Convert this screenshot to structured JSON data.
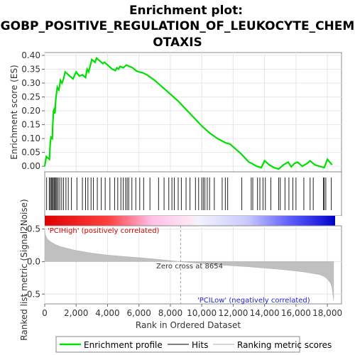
{
  "chart_data": [
    {
      "type": "line",
      "title_lines": [
        "Enrichment plot:",
        "GOBP_POSITIVE_REGULATION_OF_LEUKOCYTE_CHEM",
        "OTAXIS"
      ],
      "ylabel": "Enrichment score (ES)",
      "ylim": [
        -0.02,
        0.41
      ],
      "xlim": [
        0,
        18900
      ],
      "y_ticks": [
        "0.00",
        "0.05",
        "0.10",
        "0.15",
        "0.20",
        "0.25",
        "0.30",
        "0.35",
        "0.40"
      ],
      "grid": true,
      "series": [
        {
          "name": "Enrichment profile",
          "color": "#00e000",
          "x": [
            0,
            100,
            300,
            350,
            400,
            480,
            520,
            560,
            600,
            650,
            700,
            800,
            900,
            950,
            1000,
            1100,
            1200,
            1300,
            1400,
            1800,
            2000,
            2200,
            2400,
            2600,
            2700,
            2800,
            3000,
            3200,
            3300,
            3500,
            3700,
            3800,
            4000,
            4300,
            4500,
            4600,
            4700,
            4800,
            5000,
            5200,
            5400,
            5600,
            5800,
            6000,
            6200,
            6500,
            7000,
            7500,
            8000,
            8500,
            9000,
            9500,
            10000,
            10500,
            11000,
            11500,
            11800,
            12000,
            12500,
            13000,
            13200,
            13500,
            13800,
            14000,
            14300,
            14600,
            14900,
            15000,
            15200,
            15500,
            15700,
            15900,
            16100,
            16400,
            16700,
            16900,
            17200,
            17500,
            17800,
            18000,
            18300
          ],
          "y": [
            0.0,
            0.035,
            0.025,
            0.08,
            0.105,
            0.1,
            0.16,
            0.2,
            0.205,
            0.19,
            0.24,
            0.285,
            0.275,
            0.29,
            0.31,
            0.3,
            0.315,
            0.34,
            0.335,
            0.315,
            0.34,
            0.325,
            0.33,
            0.32,
            0.35,
            0.34,
            0.385,
            0.375,
            0.39,
            0.38,
            0.37,
            0.375,
            0.365,
            0.35,
            0.345,
            0.355,
            0.35,
            0.36,
            0.355,
            0.365,
            0.36,
            0.355,
            0.345,
            0.34,
            0.338,
            0.33,
            0.31,
            0.285,
            0.26,
            0.235,
            0.205,
            0.175,
            0.145,
            0.12,
            0.1,
            0.085,
            0.08,
            0.07,
            0.045,
            0.015,
            0.01,
            0.0,
            -0.005,
            0.02,
            0.005,
            -0.005,
            -0.01,
            -0.005,
            0.005,
            0.015,
            -0.002,
            0.01,
            0.015,
            0.0,
            0.01,
            0.02,
            0.005,
            0.0,
            -0.005,
            0.025,
            0.005
          ]
        }
      ]
    },
    {
      "type": "hits",
      "hit_positions": [
        120,
        290,
        360,
        420,
        480,
        540,
        600,
        660,
        720,
        780,
        860,
        960,
        1080,
        1200,
        1350,
        1500,
        1700,
        2050,
        2400,
        2600,
        2750,
        2950,
        3100,
        3350,
        3600,
        3850,
        4150,
        4450,
        4650,
        4850,
        5000,
        5150,
        5250,
        5350,
        5550,
        5800,
        6050,
        6300,
        6700,
        7250,
        7600,
        7900,
        8100,
        8250,
        8500,
        8700,
        9000,
        9250,
        9600,
        9800,
        10000,
        10100,
        10200,
        10350,
        10500,
        10800,
        11300,
        11500,
        11650,
        12550,
        13150,
        13250,
        13550,
        13700,
        13900,
        14050,
        14400,
        14900,
        15000,
        15300,
        15550,
        15800,
        16000,
        16500,
        16900,
        17100,
        17750,
        17800,
        17900,
        18250
      ]
    },
    {
      "type": "area",
      "ylabel": "Ranked list metric (Signal2Noise)",
      "xlabel": "Rank in Ordered Dataset",
      "ylim": [
        -0.65,
        0.55
      ],
      "xlim": [
        0,
        18900
      ],
      "y_ticks": [
        "-0.5",
        "0.0",
        "0.5"
      ],
      "x_ticks": [
        "0",
        "2,000",
        "4,000",
        "6,000",
        "8,000",
        "10,000",
        "12,000",
        "14,000",
        "16,000",
        "18,000"
      ],
      "x": [
        0,
        30,
        100,
        200,
        400,
        700,
        1000,
        1500,
        2000,
        3000,
        4000,
        5000,
        6000,
        7000,
        8000,
        8654,
        9000,
        10000,
        11000,
        12000,
        13000,
        14000,
        15000,
        16000,
        16500,
        17000,
        17500,
        17800,
        18000,
        18200,
        18300,
        18400
      ],
      "values": [
        0.5,
        0.42,
        0.38,
        0.34,
        0.3,
        0.26,
        0.23,
        0.2,
        0.17,
        0.13,
        0.1,
        0.08,
        0.06,
        0.04,
        0.015,
        0.0,
        -0.01,
        -0.03,
        -0.05,
        -0.065,
        -0.08,
        -0.1,
        -0.12,
        -0.145,
        -0.16,
        -0.18,
        -0.2,
        -0.23,
        -0.27,
        -0.33,
        -0.4,
        -0.6
      ],
      "zero_cross_label": "Zero cross at 8654",
      "zero_cross": 8654,
      "pos_label": "'PCIHigh' (positively correlated)",
      "neg_label": "'PCILow' (negatively correlated)"
    }
  ],
  "legend": {
    "items": [
      {
        "label": "Enrichment profile",
        "color": "#00e000"
      },
      {
        "label": "Hits",
        "color": "#555555"
      },
      {
        "label": "Ranking metric scores",
        "color": "#c8c8c8"
      }
    ]
  }
}
